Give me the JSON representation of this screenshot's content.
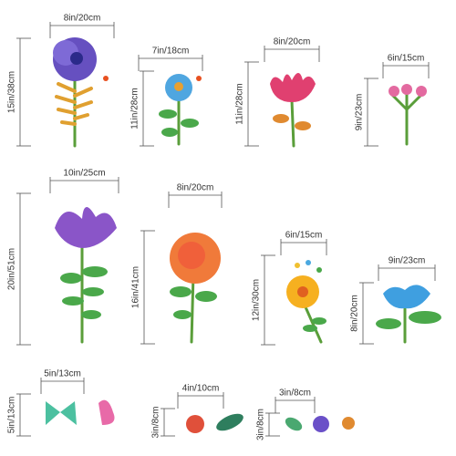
{
  "decals": [
    {
      "width": "8in/20cm",
      "height": "15in/38cm"
    },
    {
      "width": "7in/18cm",
      "height": "11in/28cm"
    },
    {
      "width": "8in/20cm",
      "height": "11in/28cm"
    },
    {
      "width": "6in/15cm",
      "height": "9in/23cm"
    },
    {
      "width": "10in/25cm",
      "height": "20in/51cm"
    },
    {
      "width": "8in/20cm",
      "height": "16in/41cm"
    },
    {
      "width": "6in/15cm",
      "height": "12in/30cm"
    },
    {
      "width": "9in/23cm",
      "height": "8in/20cm"
    },
    {
      "width": "5in/13cm",
      "height": "5in/13cm"
    },
    {
      "width": "4in/10cm",
      "height": "3in/8cm"
    },
    {
      "width": "3in/8cm",
      "height": "3in/8cm"
    }
  ]
}
